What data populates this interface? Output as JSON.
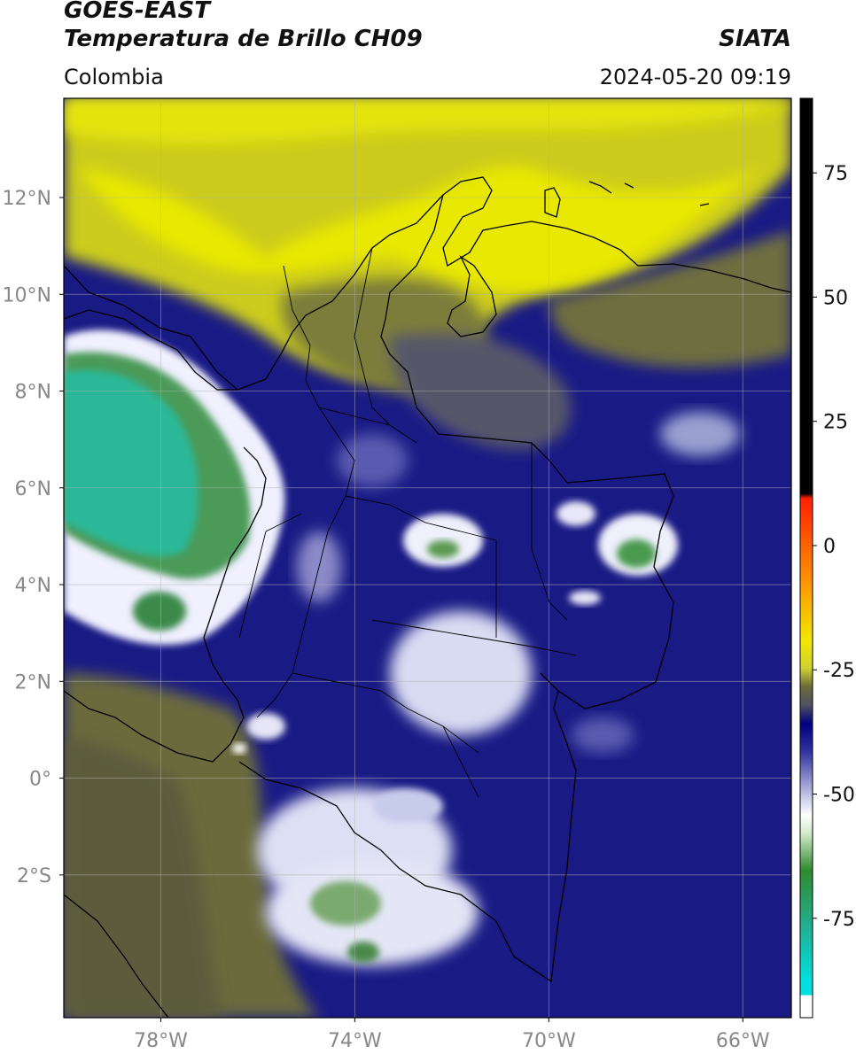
{
  "header": {
    "title_line1": "GOES-EAST",
    "title_line2": "Temperatura de Brillo CH09",
    "organization": "SIATA",
    "region": "Colombia",
    "timestamp": "2024-05-20 09:19"
  },
  "map": {
    "lon_range": [
      -80,
      -65
    ],
    "lat_range": [
      -4.95,
      14.05
    ],
    "lon_ticks": [
      {
        "value": -78,
        "label": "78°W"
      },
      {
        "value": -74,
        "label": "74°W"
      },
      {
        "value": -70,
        "label": "70°W"
      },
      {
        "value": -66,
        "label": "66°W"
      }
    ],
    "lat_ticks": [
      {
        "value": 12,
        "label": "12°N"
      },
      {
        "value": 10,
        "label": "10°N"
      },
      {
        "value": 8,
        "label": "8°N"
      },
      {
        "value": 6,
        "label": "6°N"
      },
      {
        "value": 4,
        "label": "4°N"
      },
      {
        "value": 2,
        "label": "2°N"
      },
      {
        "value": 0,
        "label": "0°"
      },
      {
        "value": -2,
        "label": "2°S"
      }
    ]
  },
  "colorbar": {
    "range": [
      -95,
      90
    ],
    "ticks": [
      {
        "value": 75,
        "label": "75"
      },
      {
        "value": 50,
        "label": "50"
      },
      {
        "value": 25,
        "label": "25"
      },
      {
        "value": 0,
        "label": "0"
      },
      {
        "value": -25,
        "label": "-25"
      },
      {
        "value": -50,
        "label": "-50"
      },
      {
        "value": -75,
        "label": "-75"
      }
    ],
    "colors": {
      "hot": "#000000",
      "red": "#ff2000",
      "orange": "#ff8c00",
      "yellow": "#e8e800",
      "olive": "#6b6b3a",
      "gray": "#555566",
      "navy": "#000080",
      "white": "#ffffff",
      "green": "#2f8a2f",
      "teal": "#20c0a0",
      "cyan": "#00e0e0"
    }
  }
}
